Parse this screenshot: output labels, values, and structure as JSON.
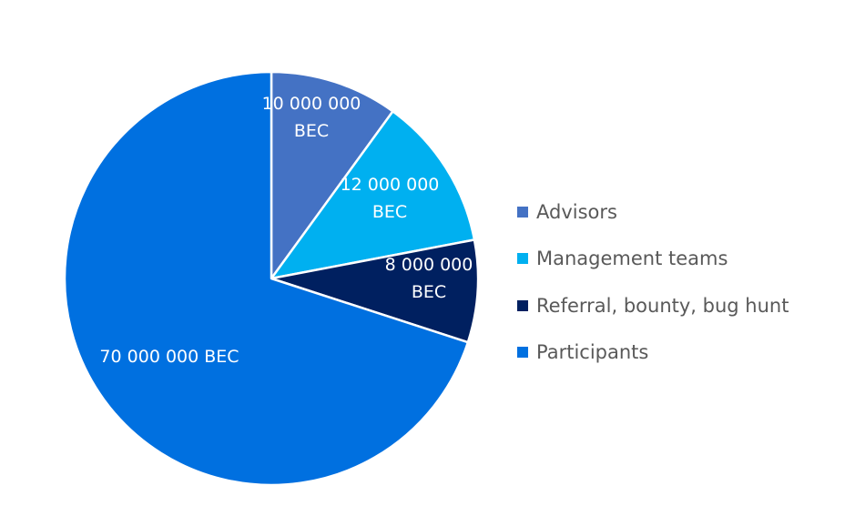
{
  "chart_data": {
    "type": "pie",
    "unit": "BEC",
    "start_angle_deg": 0,
    "direction": "clockwise",
    "slices": [
      {
        "name": "Advisors",
        "value": 10000000,
        "label_lines": [
          "10 000 000",
          "BEC"
        ],
        "color": "#4472c4"
      },
      {
        "name": "Management teams",
        "value": 12000000,
        "label_lines": [
          "12 000 000",
          "BEC"
        ],
        "color": "#00b0f0"
      },
      {
        "name": "Referral, bounty, bug hunt",
        "value": 8000000,
        "label_lines": [
          "8 000 000",
          "BEC"
        ],
        "color": "#002060"
      },
      {
        "name": "Participants",
        "value": 70000000,
        "label_lines": [
          "70 000 000 BEC"
        ],
        "color": "#0070e0"
      }
    ],
    "legend_position": "right"
  }
}
